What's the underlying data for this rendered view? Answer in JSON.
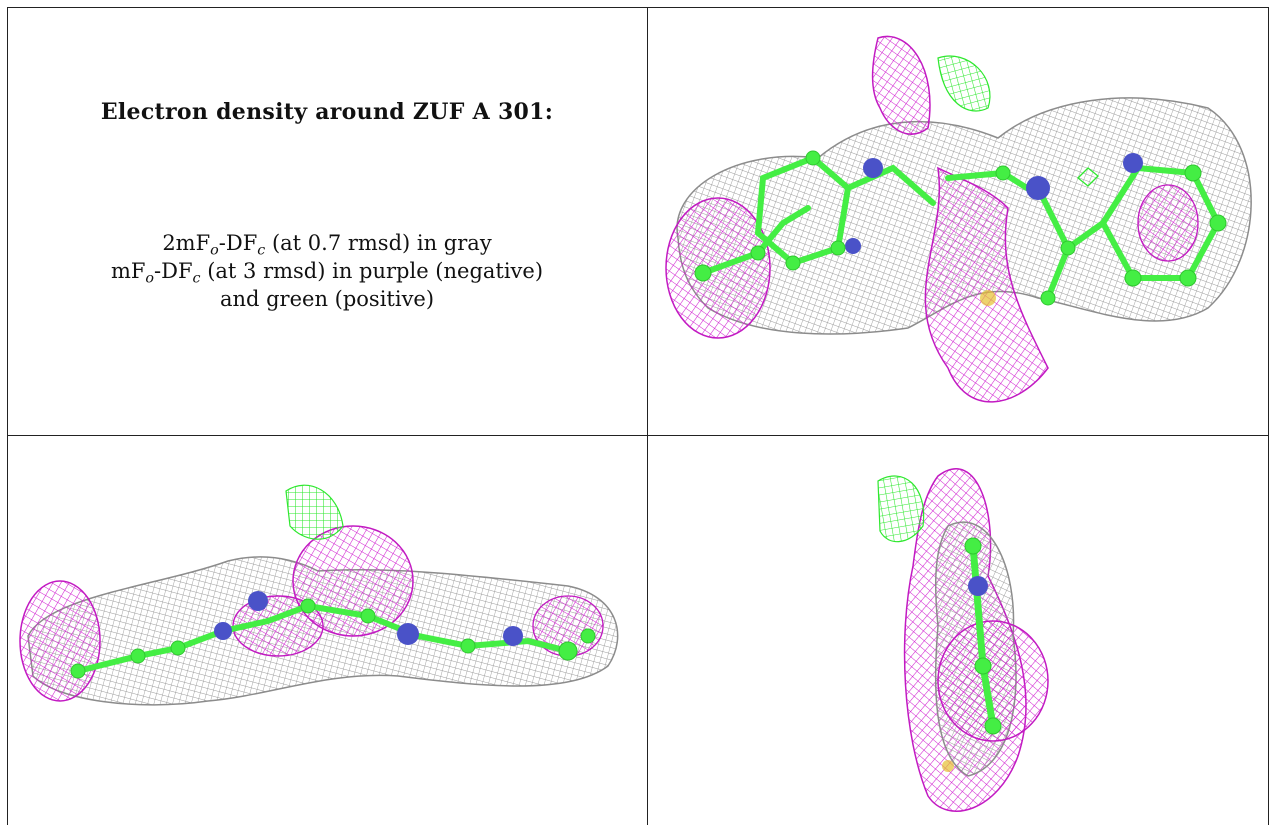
{
  "caption": {
    "title": "Electron density around ZUF A 301:",
    "line1": {
      "pre": "2mF",
      "sub1": "o",
      "mid": "-DF",
      "sub2": "c",
      "post": " (at 0.7 rmsd) in gray"
    },
    "line2": {
      "pre": "mF",
      "sub1": "o",
      "mid": "-DF",
      "sub2": "c",
      "post": " (at 3 rmsd) in purple (negative)"
    },
    "line3": "and green (positive)"
  },
  "colors": {
    "map_2fofc": "#9a9a9a",
    "map_negative": "#d01fd0",
    "map_positive": "#2ee82e",
    "carbon": "#44ee44",
    "nitrogen": "#4a52c8",
    "sulfur": "#e6c030",
    "rule": "#222222"
  },
  "panels": [
    {
      "name": "view-top-right",
      "description_icon": "electron-density-mesh"
    },
    {
      "name": "view-bottom-left",
      "description_icon": "electron-density-mesh"
    },
    {
      "name": "view-bottom-right",
      "description_icon": "electron-density-mesh"
    }
  ]
}
